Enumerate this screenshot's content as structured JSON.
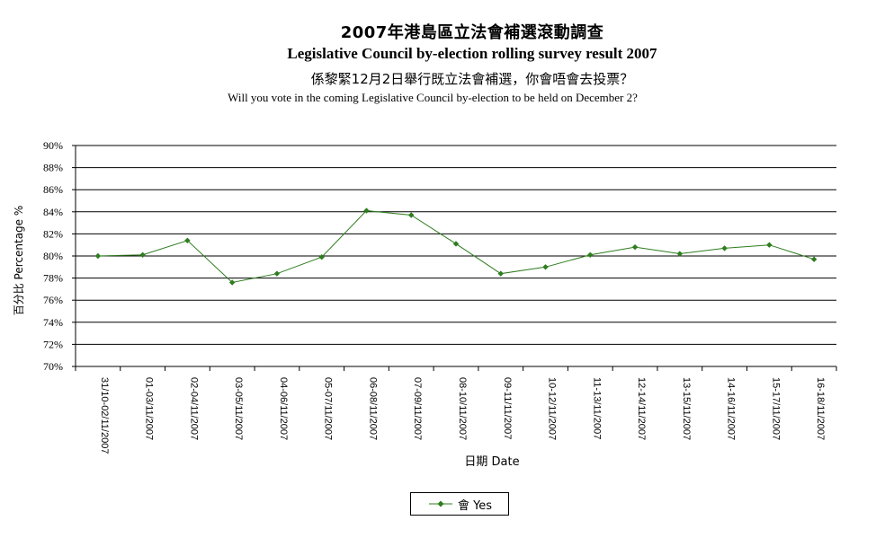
{
  "chart_data": {
    "type": "line",
    "title": "2007年港島區立法會補選滾動調查",
    "title_en": "Legislative Council by-election rolling survey result 2007",
    "subtitle": "係黎緊12月2日舉行既立法會補選，你會唔會去投票？",
    "subtitle_en": "Will you vote in the coming Legislative Council by-election to be held on December 2?",
    "xlabel": "日期 Date",
    "ylabel": "百分比 Percentage %",
    "ylim": [
      70,
      90
    ],
    "ytick_step": 2,
    "ytick_labels": [
      "70%",
      "72%",
      "74%",
      "76%",
      "78%",
      "80%",
      "82%",
      "84%",
      "86%",
      "88%",
      "90%"
    ],
    "categories": [
      "31/10-02/11/2007",
      "01-03/11/2007",
      "02-04/11/2007",
      "03-05/11/2007",
      "04-06/11/2007",
      "05-07/11/2007",
      "06-08/11/2007",
      "07-09/11/2007",
      "08-10/11/2007",
      "09-11/11/2007",
      "10-12/11/2007",
      "11-13/11/2007",
      "12-14/11/2007",
      "13-15/11/2007",
      "14-16/11/2007",
      "15-17/11/2007",
      "16-18/11/2007"
    ],
    "series": [
      {
        "name": "會 Yes",
        "color": "#2e7d1e",
        "values": [
          80.0,
          80.1,
          81.4,
          77.6,
          78.4,
          79.9,
          84.1,
          83.7,
          81.1,
          78.4,
          79.0,
          80.1,
          80.8,
          80.2,
          80.7,
          81.0,
          79.7
        ]
      }
    ],
    "grid": true,
    "legend_position": "bottom"
  }
}
